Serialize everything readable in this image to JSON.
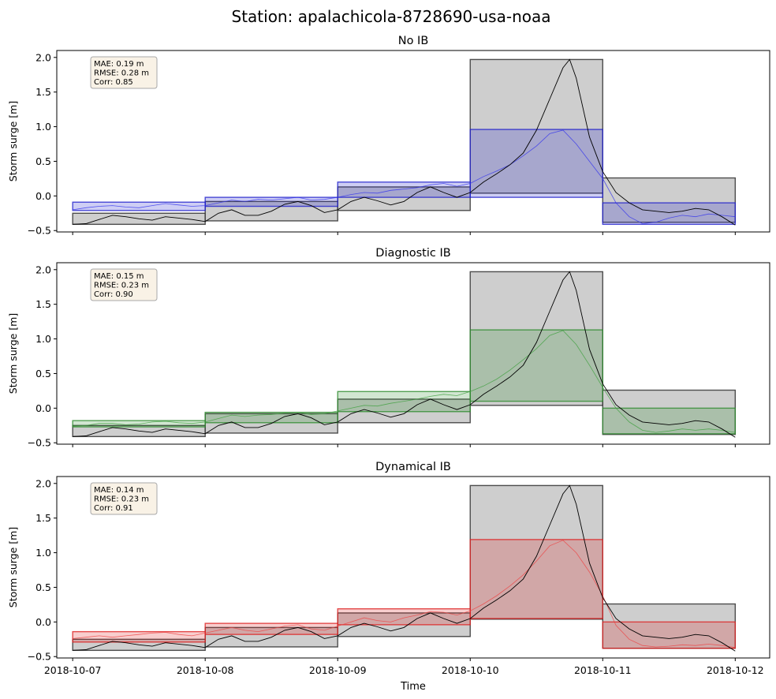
{
  "figure": {
    "title": "Station: apalachicola-8728690-usa-noaa",
    "xlabel": "Time",
    "x_tick_labels": [
      "2018-10-07",
      "2018-10-08",
      "2018-10-09",
      "2018-10-10",
      "2018-10-11",
      "2018-10-12"
    ]
  },
  "chart_data": [
    {
      "type": "line",
      "title": "No IB",
      "ylabel": "Storm surge [m]",
      "xlabel": "",
      "x_unit": "days since 2018-10-07",
      "xlim": [
        -0.12,
        5.26
      ],
      "ylim": [
        -0.52,
        2.1
      ],
      "yticks": [
        -0.5,
        0.0,
        0.5,
        1.0,
        1.5,
        2.0
      ],
      "ytick_labels": [
        "−0.5",
        "0.0",
        "0.5",
        "1.0",
        "1.5",
        "2.0"
      ],
      "model_color": "#2222cc",
      "stats": [
        "MAE: 0.19 m",
        "RMSE: 0.28 m",
        "Corr: 0.85"
      ],
      "obs_boxes": [
        {
          "x0": 0,
          "x1": 1,
          "low": -0.41,
          "high": -0.25
        },
        {
          "x0": 1,
          "x1": 2,
          "low": -0.36,
          "high": -0.08
        },
        {
          "x0": 2,
          "x1": 3,
          "low": -0.21,
          "high": 0.13
        },
        {
          "x0": 3,
          "x1": 4,
          "low": 0.04,
          "high": 1.97
        },
        {
          "x0": 4,
          "x1": 5,
          "low": -0.38,
          "high": 0.26
        }
      ],
      "model_boxes": [
        {
          "x0": 0,
          "x1": 1,
          "low": -0.21,
          "high": -0.09
        },
        {
          "x0": 1,
          "x1": 2,
          "low": -0.15,
          "high": -0.02
        },
        {
          "x0": 2,
          "x1": 3,
          "low": -0.02,
          "high": 0.2
        },
        {
          "x0": 3,
          "x1": 4,
          "low": -0.02,
          "high": 0.96
        },
        {
          "x0": 4,
          "x1": 5,
          "low": -0.41,
          "high": -0.1
        }
      ],
      "series": [
        {
          "name": "Observed",
          "color": "#000000",
          "x": [
            0,
            0.1,
            0.2,
            0.3,
            0.4,
            0.5,
            0.6,
            0.7,
            0.8,
            0.9,
            1.0,
            1.1,
            1.2,
            1.3,
            1.4,
            1.5,
            1.6,
            1.7,
            1.8,
            1.9,
            2.0,
            2.1,
            2.2,
            2.3,
            2.4,
            2.5,
            2.6,
            2.7,
            2.8,
            2.9,
            3.0,
            3.1,
            3.2,
            3.3,
            3.4,
            3.5,
            3.6,
            3.7,
            3.75,
            3.8,
            3.9,
            4.0,
            4.1,
            4.2,
            4.3,
            4.4,
            4.5,
            4.6,
            4.7,
            4.8,
            4.9,
            5.0
          ],
          "y": [
            -0.41,
            -0.4,
            -0.34,
            -0.28,
            -0.3,
            -0.33,
            -0.35,
            -0.3,
            -0.32,
            -0.34,
            -0.37,
            -0.25,
            -0.2,
            -0.28,
            -0.28,
            -0.22,
            -0.12,
            -0.08,
            -0.14,
            -0.24,
            -0.2,
            -0.08,
            -0.02,
            -0.07,
            -0.13,
            -0.08,
            0.05,
            0.13,
            0.05,
            -0.02,
            0.05,
            0.2,
            0.32,
            0.45,
            0.62,
            0.95,
            1.4,
            1.85,
            1.97,
            1.7,
            0.85,
            0.35,
            0.05,
            -0.1,
            -0.2,
            -0.22,
            -0.24,
            -0.22,
            -0.18,
            -0.2,
            -0.3,
            -0.42
          ]
        },
        {
          "name": "No IB",
          "color": "#3333ee",
          "x": [
            0,
            0.1,
            0.2,
            0.3,
            0.4,
            0.5,
            0.6,
            0.7,
            0.8,
            0.9,
            1.0,
            1.1,
            1.2,
            1.3,
            1.4,
            1.5,
            1.6,
            1.7,
            1.8,
            1.9,
            2.0,
            2.1,
            2.2,
            2.3,
            2.4,
            2.5,
            2.6,
            2.7,
            2.8,
            2.9,
            3.0,
            3.1,
            3.2,
            3.3,
            3.4,
            3.5,
            3.6,
            3.7,
            3.8,
            3.9,
            4.0,
            4.1,
            4.2,
            4.3,
            4.4,
            4.5,
            4.6,
            4.7,
            4.8,
            4.9,
            5.0
          ],
          "y": [
            -0.2,
            -0.17,
            -0.15,
            -0.14,
            -0.16,
            -0.17,
            -0.14,
            -0.11,
            -0.13,
            -0.15,
            -0.14,
            -0.1,
            -0.06,
            -0.08,
            -0.05,
            -0.06,
            -0.04,
            -0.02,
            -0.06,
            -0.05,
            -0.02,
            0.02,
            0.05,
            0.04,
            0.08,
            0.1,
            0.12,
            0.16,
            0.18,
            0.14,
            0.18,
            0.28,
            0.36,
            0.45,
            0.58,
            0.72,
            0.9,
            0.95,
            0.75,
            0.5,
            0.25,
            -0.1,
            -0.3,
            -0.4,
            -0.38,
            -0.32,
            -0.28,
            -0.3,
            -0.26,
            -0.28,
            -0.3
          ]
        }
      ]
    },
    {
      "type": "line",
      "title": "Diagnostic IB",
      "ylabel": "Storm surge [m]",
      "xlabel": "",
      "x_unit": "days since 2018-10-07",
      "xlim": [
        -0.12,
        5.26
      ],
      "ylim": [
        -0.52,
        2.1
      ],
      "yticks": [
        -0.5,
        0.0,
        0.5,
        1.0,
        1.5,
        2.0
      ],
      "ytick_labels": [
        "−0.5",
        "0.0",
        "0.5",
        "1.0",
        "1.5",
        "2.0"
      ],
      "model_color": "#2e8b2e",
      "stats": [
        "MAE: 0.15 m",
        "RMSE: 0.23 m",
        "Corr: 0.90"
      ],
      "obs_boxes": [
        {
          "x0": 0,
          "x1": 1,
          "low": -0.41,
          "high": -0.25
        },
        {
          "x0": 1,
          "x1": 2,
          "low": -0.36,
          "high": -0.08
        },
        {
          "x0": 2,
          "x1": 3,
          "low": -0.21,
          "high": 0.13
        },
        {
          "x0": 3,
          "x1": 4,
          "low": 0.04,
          "high": 1.97
        },
        {
          "x0": 4,
          "x1": 5,
          "low": -0.38,
          "high": 0.26
        }
      ],
      "model_boxes": [
        {
          "x0": 0,
          "x1": 1,
          "low": -0.27,
          "high": -0.18
        },
        {
          "x0": 1,
          "x1": 2,
          "low": -0.21,
          "high": -0.06
        },
        {
          "x0": 2,
          "x1": 3,
          "low": -0.05,
          "high": 0.24
        },
        {
          "x0": 3,
          "x1": 4,
          "low": 0.1,
          "high": 1.13
        },
        {
          "x0": 4,
          "x1": 5,
          "low": -0.37,
          "high": 0.0
        }
      ],
      "series": [
        {
          "name": "Observed",
          "color": "#000000",
          "x": [
            0,
            0.1,
            0.2,
            0.3,
            0.4,
            0.5,
            0.6,
            0.7,
            0.8,
            0.9,
            1.0,
            1.1,
            1.2,
            1.3,
            1.4,
            1.5,
            1.6,
            1.7,
            1.8,
            1.9,
            2.0,
            2.1,
            2.2,
            2.3,
            2.4,
            2.5,
            2.6,
            2.7,
            2.8,
            2.9,
            3.0,
            3.1,
            3.2,
            3.3,
            3.4,
            3.5,
            3.6,
            3.7,
            3.75,
            3.8,
            3.9,
            4.0,
            4.1,
            4.2,
            4.3,
            4.4,
            4.5,
            4.6,
            4.7,
            4.8,
            4.9,
            5.0
          ],
          "y": [
            -0.41,
            -0.4,
            -0.34,
            -0.28,
            -0.3,
            -0.33,
            -0.35,
            -0.3,
            -0.32,
            -0.34,
            -0.37,
            -0.25,
            -0.2,
            -0.28,
            -0.28,
            -0.22,
            -0.12,
            -0.08,
            -0.14,
            -0.24,
            -0.2,
            -0.08,
            -0.02,
            -0.07,
            -0.13,
            -0.08,
            0.05,
            0.13,
            0.05,
            -0.02,
            0.05,
            0.2,
            0.32,
            0.45,
            0.62,
            0.95,
            1.4,
            1.85,
            1.97,
            1.7,
            0.85,
            0.35,
            0.05,
            -0.1,
            -0.2,
            -0.22,
            -0.24,
            -0.22,
            -0.18,
            -0.2,
            -0.3,
            -0.42
          ]
        },
        {
          "name": "Diagnostic IB",
          "color": "#3fa03f",
          "x": [
            0,
            0.1,
            0.2,
            0.3,
            0.4,
            0.5,
            0.6,
            0.7,
            0.8,
            0.9,
            1.0,
            1.1,
            1.2,
            1.3,
            1.4,
            1.5,
            1.6,
            1.7,
            1.8,
            1.9,
            2.0,
            2.1,
            2.2,
            2.3,
            2.4,
            2.5,
            2.6,
            2.7,
            2.8,
            2.9,
            3.0,
            3.1,
            3.2,
            3.3,
            3.4,
            3.5,
            3.6,
            3.7,
            3.8,
            3.9,
            4.0,
            4.1,
            4.2,
            4.3,
            4.4,
            4.5,
            4.6,
            4.7,
            4.8,
            4.9,
            5.0
          ],
          "y": [
            -0.26,
            -0.25,
            -0.22,
            -0.22,
            -0.24,
            -0.23,
            -0.2,
            -0.19,
            -0.21,
            -0.22,
            -0.2,
            -0.15,
            -0.1,
            -0.12,
            -0.1,
            -0.09,
            -0.07,
            -0.06,
            -0.09,
            -0.08,
            -0.04,
            0.0,
            0.04,
            0.03,
            0.07,
            0.1,
            0.13,
            0.17,
            0.2,
            0.18,
            0.24,
            0.32,
            0.42,
            0.55,
            0.7,
            0.86,
            1.05,
            1.12,
            0.92,
            0.62,
            0.3,
            0.0,
            -0.2,
            -0.32,
            -0.35,
            -0.33,
            -0.3,
            -0.32,
            -0.3,
            -0.32,
            -0.35
          ]
        }
      ]
    },
    {
      "type": "line",
      "title": "Dynamical IB",
      "ylabel": "Storm surge [m]",
      "xlabel": "Time",
      "x_unit": "days since 2018-10-07",
      "xlim": [
        -0.12,
        5.26
      ],
      "ylim": [
        -0.52,
        2.1
      ],
      "yticks": [
        -0.5,
        0.0,
        0.5,
        1.0,
        1.5,
        2.0
      ],
      "ytick_labels": [
        "−0.5",
        "0.0",
        "0.5",
        "1.0",
        "1.5",
        "2.0"
      ],
      "model_color": "#dd2222",
      "stats": [
        "MAE: 0.14 m",
        "RMSE: 0.23 m",
        "Corr: 0.91"
      ],
      "obs_boxes": [
        {
          "x0": 0,
          "x1": 1,
          "low": -0.41,
          "high": -0.25
        },
        {
          "x0": 1,
          "x1": 2,
          "low": -0.36,
          "high": -0.08
        },
        {
          "x0": 2,
          "x1": 3,
          "low": -0.21,
          "high": 0.13
        },
        {
          "x0": 3,
          "x1": 4,
          "low": 0.04,
          "high": 1.97
        },
        {
          "x0": 4,
          "x1": 5,
          "low": -0.38,
          "high": 0.26
        }
      ],
      "model_boxes": [
        {
          "x0": 0,
          "x1": 1,
          "low": -0.29,
          "high": -0.14
        },
        {
          "x0": 1,
          "x1": 2,
          "low": -0.18,
          "high": -0.02
        },
        {
          "x0": 2,
          "x1": 3,
          "low": -0.04,
          "high": 0.19
        },
        {
          "x0": 3,
          "x1": 4,
          "low": 0.05,
          "high": 1.19
        },
        {
          "x0": 4,
          "x1": 5,
          "low": -0.38,
          "high": 0.0
        }
      ],
      "series": [
        {
          "name": "Observed",
          "color": "#000000",
          "x": [
            0,
            0.1,
            0.2,
            0.3,
            0.4,
            0.5,
            0.6,
            0.7,
            0.8,
            0.9,
            1.0,
            1.1,
            1.2,
            1.3,
            1.4,
            1.5,
            1.6,
            1.7,
            1.8,
            1.9,
            2.0,
            2.1,
            2.2,
            2.3,
            2.4,
            2.5,
            2.6,
            2.7,
            2.8,
            2.9,
            3.0,
            3.1,
            3.2,
            3.3,
            3.4,
            3.5,
            3.6,
            3.7,
            3.75,
            3.8,
            3.9,
            4.0,
            4.1,
            4.2,
            4.3,
            4.4,
            4.5,
            4.6,
            4.7,
            4.8,
            4.9,
            5.0
          ],
          "y": [
            -0.41,
            -0.4,
            -0.34,
            -0.28,
            -0.3,
            -0.33,
            -0.35,
            -0.3,
            -0.32,
            -0.34,
            -0.37,
            -0.25,
            -0.2,
            -0.28,
            -0.28,
            -0.22,
            -0.12,
            -0.08,
            -0.14,
            -0.24,
            -0.2,
            -0.08,
            -0.02,
            -0.07,
            -0.13,
            -0.08,
            0.05,
            0.13,
            0.05,
            -0.02,
            0.05,
            0.2,
            0.32,
            0.45,
            0.62,
            0.95,
            1.4,
            1.85,
            1.97,
            1.7,
            0.85,
            0.35,
            0.05,
            -0.1,
            -0.2,
            -0.22,
            -0.24,
            -0.22,
            -0.18,
            -0.2,
            -0.3,
            -0.42
          ]
        },
        {
          "name": "Dynamical IB",
          "color": "#ee4444",
          "x": [
            0,
            0.1,
            0.2,
            0.3,
            0.4,
            0.5,
            0.6,
            0.7,
            0.8,
            0.9,
            1.0,
            1.1,
            1.2,
            1.3,
            1.4,
            1.5,
            1.6,
            1.7,
            1.8,
            1.9,
            2.0,
            2.1,
            2.2,
            2.3,
            2.4,
            2.5,
            2.6,
            2.7,
            2.8,
            2.9,
            3.0,
            3.1,
            3.2,
            3.3,
            3.4,
            3.5,
            3.6,
            3.7,
            3.8,
            3.9,
            4.0,
            4.1,
            4.2,
            4.3,
            4.4,
            4.5,
            4.6,
            4.7,
            4.8,
            4.9,
            5.0
          ],
          "y": [
            -0.24,
            -0.22,
            -0.2,
            -0.22,
            -0.2,
            -0.18,
            -0.16,
            -0.15,
            -0.18,
            -0.2,
            -0.16,
            -0.12,
            -0.08,
            -0.12,
            -0.14,
            -0.1,
            -0.06,
            -0.04,
            -0.1,
            -0.12,
            -0.06,
            0.0,
            0.06,
            0.02,
            0.0,
            0.06,
            0.1,
            0.15,
            0.14,
            0.1,
            0.16,
            0.26,
            0.38,
            0.52,
            0.68,
            0.88,
            1.1,
            1.18,
            1.0,
            0.72,
            0.38,
            -0.05,
            -0.25,
            -0.34,
            -0.36,
            -0.35,
            -0.33,
            -0.34,
            -0.32,
            -0.34,
            -0.37
          ]
        }
      ]
    }
  ]
}
